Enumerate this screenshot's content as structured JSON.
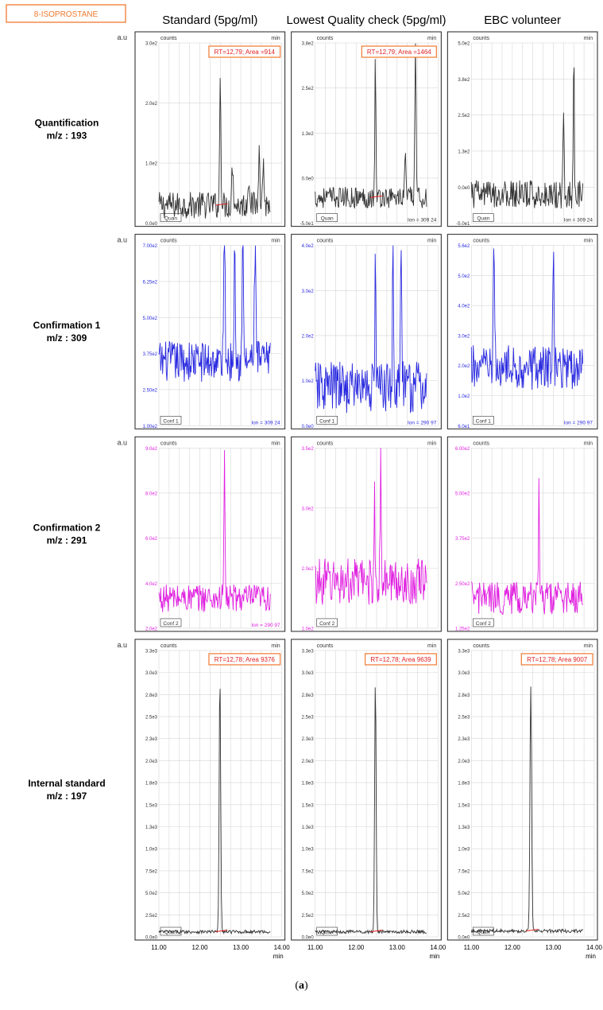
{
  "caption": {
    "open": "(",
    "letter": "a",
    "close": ")"
  },
  "badge": "8-ISOPROSTANE",
  "yunit": "a.u",
  "xunit": "min",
  "columns": [
    "Standard (5pg/ml)",
    "Lowest Quality check (5pg/ml)",
    "EBC volunteer"
  ],
  "rows": [
    {
      "label1": "Quantification",
      "label2": "m/z : 193",
      "tag": "Quan"
    },
    {
      "label1": "Confirmation 1",
      "label2": "m/z : 309",
      "tag": "Conf 1"
    },
    {
      "label1": "Confirmation 2",
      "label2": "m/z : 291",
      "tag": "Conf 2"
    },
    {
      "label1": "Internal standard",
      "label2": "m/z : 197",
      "tag": "Quan"
    }
  ],
  "colors": {
    "quan": "#333333",
    "conf1": "#2a2ae0",
    "conf2": "#e020e0",
    "integration": "#e02020",
    "badge": "#f07a30",
    "grid": "#d6d6d6"
  },
  "counts_label": "counts",
  "chart_data": {
    "type": "line",
    "x_axis": {
      "label": "min",
      "range": [
        11.0,
        14.0
      ],
      "ticks": [
        "11.00",
        "12.00",
        "13.00",
        "14.00"
      ]
    },
    "traces": [
      {
        "column": "Standard (5pg/ml)",
        "row": "Quantification",
        "color": "#333333",
        "yticks": [
          "0.0e0",
          "1.0e2",
          "2.0e2",
          "3.0e2"
        ],
        "ymax": 400,
        "ion": "",
        "annotation": "RT=12,79; Area =914",
        "peaks": [
          [
            12.5,
            300,
            0.015
          ],
          [
            12.8,
            90,
            0.02
          ],
          [
            13.2,
            70,
            0.02
          ],
          [
            13.45,
            160,
            0.015
          ],
          [
            13.55,
            110,
            0.015
          ]
        ],
        "noise": 60,
        "base": 40
      },
      {
        "column": "Standard (5pg/ml)",
        "row": "Confirmation 1",
        "color": "#2a2ae0",
        "yticks": [
          "1.00e2",
          "2.50e2",
          "3.75e2",
          "5.00e2",
          "6.25e2",
          "7.00e2"
        ],
        "ymax": 700,
        "ion": "Ion = 309 24",
        "annotation": "",
        "peaks": [
          [
            12.6,
            580,
            0.015
          ],
          [
            12.85,
            560,
            0.015
          ],
          [
            13.05,
            470,
            0.015
          ],
          [
            13.35,
            420,
            0.02
          ]
        ],
        "noise": 160,
        "base": 250
      },
      {
        "column": "Standard (5pg/ml)",
        "row": "Confirmation 2",
        "color": "#e020e0",
        "yticks": [
          "2.0e2",
          "4.0e2",
          "6.0e2",
          "8.0e2",
          "9.0e2"
        ],
        "ymax": 900,
        "ion": "Ion = 290 97",
        "annotation": "",
        "peaks": [
          [
            12.6,
            760,
            0.012
          ]
        ],
        "noise": 140,
        "base": 150
      },
      {
        "column": "Standard (5pg/ml)",
        "row": "Internal standard",
        "color": "#333333",
        "yticks": [
          "0.0e0",
          "2.5e2",
          "5.0e2",
          "7.5e2",
          "1.0e3",
          "1.3e3",
          "1.5e3",
          "1.8e3",
          "2.0e3",
          "2.3e3",
          "2.5e3",
          "2.8e3",
          "3.0e3",
          "3.3e3"
        ],
        "ymax": 3400,
        "ion": "",
        "annotation": "RT=12,78; Area 9376",
        "peaks": [
          [
            12.49,
            3050,
            0.018
          ]
        ],
        "noise": 40,
        "base": 60
      },
      {
        "column": "Lowest Quality check (5pg/ml)",
        "row": "Quantification",
        "color": "#333333",
        "yticks": [
          "-5.0e1",
          "0.0e0",
          "1.3e2",
          "2.5e2",
          "3.8e2"
        ],
        "ymax": 420,
        "ion": "Ion = 309 24",
        "annotation": "RT=12,79; Area =1464",
        "peaks": [
          [
            12.47,
            350,
            0.012
          ],
          [
            13.45,
            360,
            0.015
          ],
          [
            13.2,
            90,
            0.02
          ]
        ],
        "noise": 50,
        "base": 60
      },
      {
        "column": "Lowest Quality check (5pg/ml)",
        "row": "Confirmation 1",
        "color": "#2a2ae0",
        "yticks": [
          "0.0e0",
          "1.0e2",
          "2.0e2",
          "3.0e2",
          "4.0e2"
        ],
        "ymax": 420,
        "ion": "Ion = 290 97",
        "annotation": "",
        "peaks": [
          [
            12.47,
            360,
            0.012
          ],
          [
            12.9,
            380,
            0.012
          ],
          [
            13.1,
            330,
            0.015
          ]
        ],
        "noise": 120,
        "base": 90
      },
      {
        "column": "Lowest Quality check (5pg/ml)",
        "row": "Confirmation 2",
        "color": "#e020e0",
        "yticks": [
          "1.0e2",
          "2.0e2",
          "3.0e2",
          "3.5e2"
        ],
        "ymax": 350,
        "ion": "",
        "annotation": "",
        "peaks": [
          [
            12.6,
            250,
            0.012
          ],
          [
            12.45,
            180,
            0.012
          ]
        ],
        "noise": 90,
        "base": 90
      },
      {
        "column": "Lowest Quality check (5pg/ml)",
        "row": "Internal standard",
        "color": "#333333",
        "yticks": [
          "0.0e0",
          "2.5e2",
          "5.0e2",
          "7.5e2",
          "1.0e3",
          "1.3e3",
          "1.5e3",
          "1.8e3",
          "2.0e3",
          "2.3e3",
          "2.5e3",
          "2.8e3",
          "3.0e3",
          "3.3e3"
        ],
        "ymax": 3400,
        "ion": "",
        "annotation": "RT=12,78; Area 9639",
        "peaks": [
          [
            12.47,
            3000,
            0.018
          ]
        ],
        "noise": 40,
        "base": 60
      },
      {
        "column": "EBC volunteer",
        "row": "Quantification",
        "color": "#333333",
        "yticks": [
          "-5.0e1",
          "0.0e0",
          "1.3e2",
          "2.5e2",
          "3.8e2",
          "5.0e2"
        ],
        "ymax": 500,
        "ion": "Ion = 309 24",
        "annotation": "",
        "peaks": [
          [
            13.25,
            230,
            0.015
          ],
          [
            13.5,
            420,
            0.012
          ]
        ],
        "noise": 80,
        "base": 80
      },
      {
        "column": "EBC volunteer",
        "row": "Confirmation 1",
        "color": "#2a2ae0",
        "yticks": [
          "6.0e1",
          "1.0e2",
          "2.0e2",
          "3.0e2",
          "4.0e2",
          "5.0e2",
          "5.6e2"
        ],
        "ymax": 560,
        "ion": "Ion = 290 97",
        "annotation": "",
        "peaks": [
          [
            11.55,
            330,
            0.015
          ],
          [
            13.0,
            380,
            0.015
          ]
        ],
        "noise": 140,
        "base": 180
      },
      {
        "column": "EBC volunteer",
        "row": "Confirmation 2",
        "color": "#e020e0",
        "yticks": [
          "1.25e2",
          "2.50e2",
          "3.75e2",
          "5.00e2",
          "6.00e2"
        ],
        "ymax": 600,
        "ion": "",
        "annotation": "",
        "peaks": [
          [
            12.65,
            450,
            0.012
          ]
        ],
        "noise": 110,
        "base": 100
      },
      {
        "column": "EBC volunteer",
        "row": "Internal standard",
        "color": "#333333",
        "yticks": [
          "0.0e0",
          "2.5e2",
          "5.0e2",
          "7.5e2",
          "1.0e3",
          "1.3e3",
          "1.5e3",
          "1.8e3",
          "2.0e3",
          "2.3e3",
          "2.5e3",
          "2.8e3",
          "3.0e3",
          "3.3e3"
        ],
        "ymax": 3400,
        "ion": "",
        "annotation": "RT=12,78; Area 9007",
        "peaks": [
          [
            12.45,
            2900,
            0.02
          ]
        ],
        "noise": 40,
        "base": 70
      }
    ]
  }
}
